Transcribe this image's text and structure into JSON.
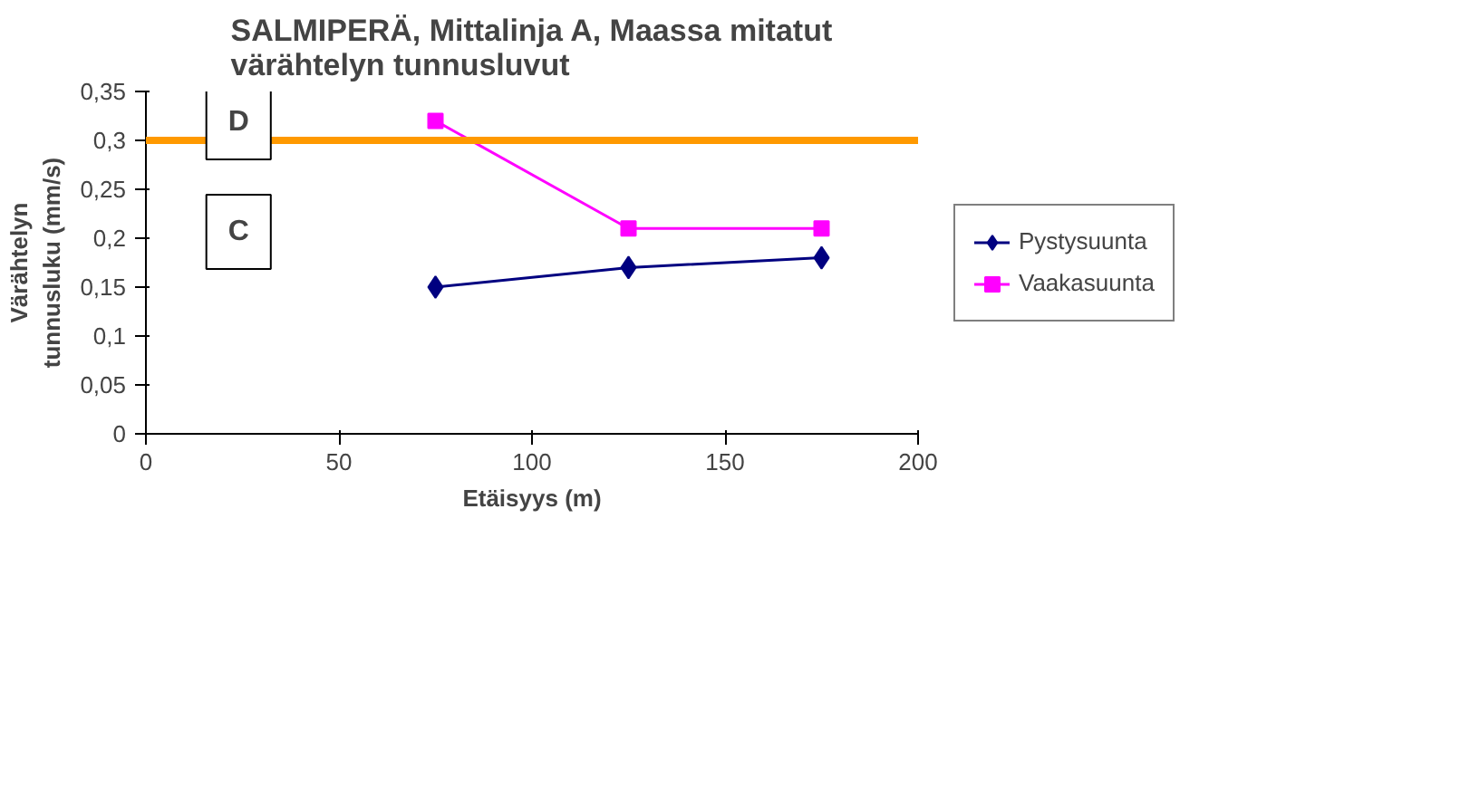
{
  "chart_data": {
    "type": "line",
    "title": "SALMIPERÄ, Mittalinja A, Maassa mitatut\nvärähtelyn tunnusluvut",
    "xlabel": "Etäisyys (m)",
    "ylabel": "Värähtelyn\ntunnusluku (mm/s)",
    "x": [
      75,
      125,
      175
    ],
    "series": [
      {
        "name": "Pystysuunta",
        "color": "#000080",
        "marker": "diamond",
        "values": [
          0.15,
          0.17,
          0.18
        ]
      },
      {
        "name": "Vaakasuunta",
        "color": "#ff00ff",
        "marker": "square",
        "values": [
          0.32,
          0.21,
          0.21
        ]
      }
    ],
    "xlim": [
      0,
      200
    ],
    "xticks": [
      0,
      50,
      100,
      150,
      200
    ],
    "ylim": [
      0,
      0.35
    ],
    "yticks": [
      0,
      {
        "value": 0.05,
        "label": "0,05"
      },
      {
        "value": 0.1,
        "label": "0,1"
      },
      {
        "value": 0.15,
        "label": "0,15"
      },
      {
        "value": 0.2,
        "label": "0,2"
      },
      {
        "value": 0.25,
        "label": "0,25"
      },
      {
        "value": 0.3,
        "label": "0,3"
      },
      {
        "value": 0.35,
        "label": "0,35"
      }
    ],
    "ref_lines": [
      {
        "axis": "y",
        "value": 0.3,
        "color": "#ff9900"
      }
    ],
    "annotations": [
      "D",
      "C"
    ],
    "grid": false,
    "legend": "right"
  }
}
